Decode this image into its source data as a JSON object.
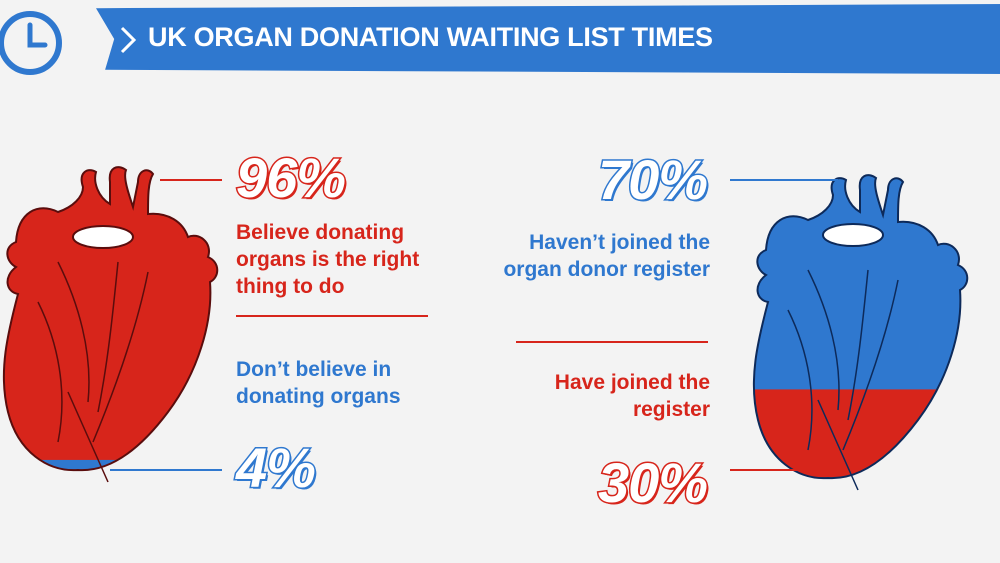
{
  "header": {
    "title": "UK ORGAN DONATION WAITING LIST TIMES"
  },
  "icons": {
    "clock": "clock-icon",
    "arrow": "chevron-right-icon",
    "heart": "heart-icon"
  },
  "colors": {
    "red": "#d7251b",
    "blue": "#2f78cf",
    "background": "#f3f3f3"
  },
  "chart_data": [
    {
      "type": "pie",
      "categories": [
        "Believe donating organs is the right thing to do",
        "Don’t believe in donating organs"
      ],
      "values": [
        96,
        4
      ],
      "colors": [
        "#d7251b",
        "#2f78cf"
      ]
    },
    {
      "type": "pie",
      "categories": [
        "Haven’t joined the organ donor register",
        "Have joined the register"
      ],
      "values": [
        70,
        30
      ],
      "colors": [
        "#2f78cf",
        "#d7251b"
      ]
    }
  ],
  "left": {
    "top_value": "96%",
    "top_text": "Believe donating organs is the right thing to do",
    "bottom_text": "Don’t believe in donating organs",
    "bottom_value": "4%"
  },
  "right": {
    "top_value": "70%",
    "top_text": "Haven’t joined the organ donor register",
    "bottom_text": "Have joined the register",
    "bottom_value": "30%"
  }
}
